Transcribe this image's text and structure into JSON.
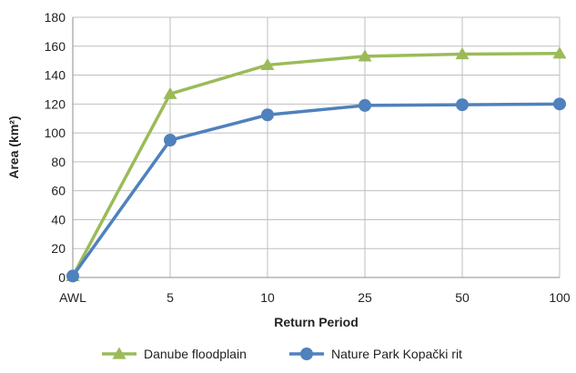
{
  "chart_data": {
    "type": "line",
    "categories": [
      "AWL",
      "5",
      "10",
      "25",
      "50",
      "100"
    ],
    "series": [
      {
        "name": "Danube floodplain",
        "values": [
          1,
          127,
          147,
          153,
          154.5,
          155
        ],
        "color": "#9bbb59",
        "marker": "triangle"
      },
      {
        "name": "Nature Park Kopački rit",
        "values": [
          1,
          95,
          112.5,
          119,
          119.5,
          120
        ],
        "color": "#4f81bd",
        "marker": "circle"
      }
    ],
    "title": "",
    "xlabel": "Return Period",
    "ylabel": "Area (km²)",
    "ylim": [
      0,
      180
    ],
    "yticks": [
      0,
      20,
      40,
      60,
      80,
      100,
      120,
      140,
      160,
      180
    ],
    "grid": true,
    "legend": "bottom"
  }
}
